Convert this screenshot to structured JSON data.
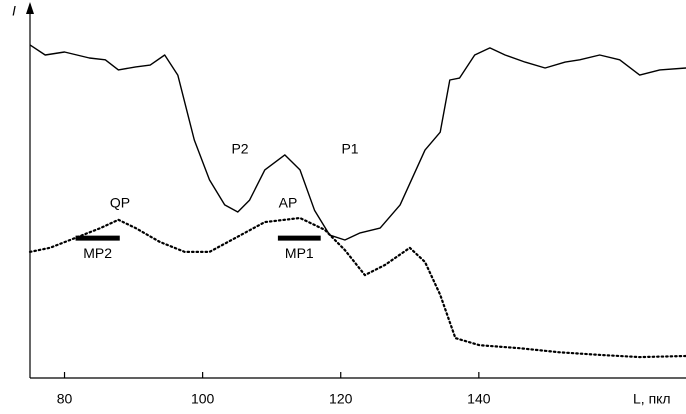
{
  "chart_data": {
    "type": "line",
    "x_label": "L, пкл",
    "y_label": "I",
    "xlim": [
      75,
      170
    ],
    "xticks": [
      80,
      100,
      120,
      140
    ],
    "ylim": [
      0,
      100
    ],
    "series": [
      {
        "style": "solid",
        "color": "#000000",
        "x": [
          75,
          77.2,
          80,
          83.6,
          85.9,
          87.8,
          90.3,
          92.4,
          94.5,
          96.4,
          98.8,
          101,
          103.2,
          105.1,
          106.8,
          109,
          111.9,
          114.1,
          116.2,
          118.4,
          120.6,
          122.8,
          125.7,
          128.6,
          132.2,
          134.4,
          135.8,
          137.2,
          139.4,
          141.6,
          143.8,
          146.7,
          149.6,
          152.5,
          154.6,
          157.5,
          160.4,
          163.3,
          166.2,
          170
        ],
        "values": [
          89.3,
          86.6,
          87.4,
          85.8,
          85.3,
          82.6,
          83.4,
          83.9,
          86.6,
          81.2,
          63.8,
          53.1,
          46.4,
          44.5,
          47.7,
          55.8,
          59.8,
          55.8,
          45,
          38.3,
          37,
          38.9,
          40.2,
          46.4,
          61.1,
          65.9,
          79.9,
          80.4,
          86.6,
          88.5,
          86.6,
          84.7,
          83.1,
          84.7,
          85.3,
          86.6,
          85.3,
          81.2,
          82.6,
          83.1
        ]
      },
      {
        "style": "dotted",
        "color": "#000000",
        "x": [
          75,
          77.9,
          81.5,
          85.2,
          87.8,
          90.3,
          93.8,
          97.4,
          101,
          104.7,
          109,
          114.1,
          117.7,
          120.6,
          123.5,
          126.4,
          130,
          132.2,
          134.4,
          136.6,
          140.1,
          145.9,
          151.7,
          157.5,
          163.3,
          170
        ],
        "values": [
          33.8,
          34.9,
          37.5,
          40.2,
          42.4,
          40.2,
          36.5,
          33.8,
          33.8,
          37.5,
          41.8,
          42.9,
          39.7,
          34.3,
          27.6,
          30.3,
          34.9,
          31.1,
          22.3,
          10.7,
          8.8,
          8,
          6.9,
          6.2,
          5.6,
          5.9
        ]
      }
    ],
    "annotations": [
      "P2",
      "P1",
      "QP",
      "AP"
    ],
    "ranges": [
      {
        "label": "MP2",
        "x": [
          81.6,
          88
        ],
        "y": 37.5
      },
      {
        "label": "MP1",
        "x": [
          110.9,
          117.1
        ],
        "y": 37.5
      }
    ]
  }
}
